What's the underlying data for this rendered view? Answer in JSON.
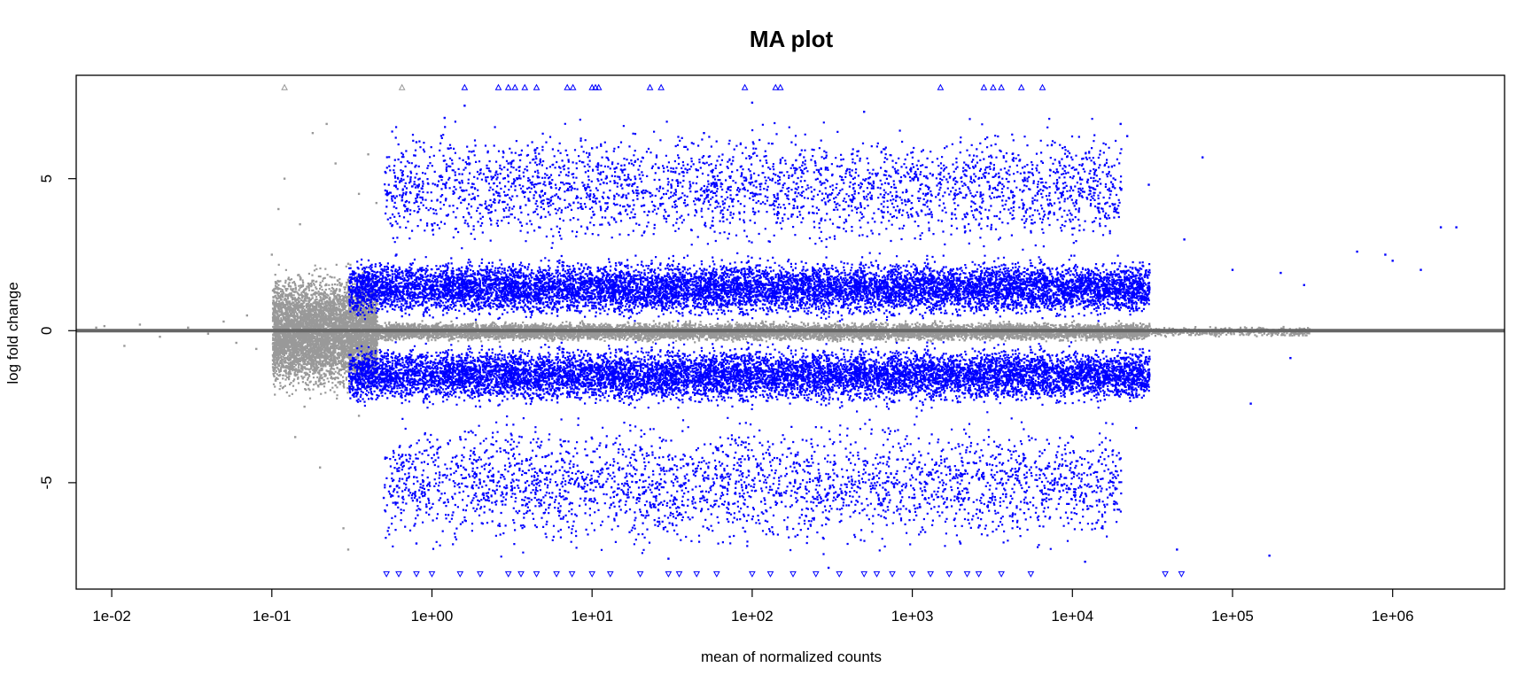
{
  "chart_data": {
    "type": "scatter",
    "title": "MA plot",
    "xlabel": "mean of normalized counts",
    "ylabel": "log fold change",
    "x_scale": "log10",
    "xlim": [
      0.006,
      5000000
    ],
    "ylim": [
      -8.5,
      8.4
    ],
    "x_ticks": [
      {
        "value": 0.01,
        "label": "1e-02"
      },
      {
        "value": 0.1,
        "label": "1e-01"
      },
      {
        "value": 1,
        "label": "1e+00"
      },
      {
        "value": 10,
        "label": "1e+01"
      },
      {
        "value": 100,
        "label": "1e+02"
      },
      {
        "value": 1000,
        "label": "1e+03"
      },
      {
        "value": 10000,
        "label": "1e+04"
      },
      {
        "value": 100000,
        "label": "1e+05"
      },
      {
        "value": 1000000,
        "label": "1e+06"
      }
    ],
    "y_ticks": [
      {
        "value": -5,
        "label": "-5"
      },
      {
        "value": 0,
        "label": "0"
      },
      {
        "value": 5,
        "label": "5"
      }
    ],
    "reference_line": {
      "y": 0,
      "color": "#666666"
    },
    "grid": false,
    "legend": "none",
    "colors": {
      "not_significant": "#999999",
      "significant": "#0000ff"
    },
    "series": [
      {
        "color": "#999999",
        "marker": "point",
        "points": [
          [
            0.008,
            0.1
          ],
          [
            0.009,
            0.15
          ],
          [
            0.012,
            -0.5
          ],
          [
            0.015,
            0.2
          ],
          [
            0.02,
            -0.2
          ],
          [
            0.03,
            0.1
          ],
          [
            0.04,
            -0.1
          ],
          [
            0.05,
            0.3
          ],
          [
            0.06,
            -0.4
          ],
          [
            0.07,
            0.5
          ],
          [
            0.08,
            -0.6
          ],
          [
            0.1,
            2.5
          ],
          [
            0.11,
            4.0
          ],
          [
            0.12,
            5.0
          ],
          [
            0.14,
            -3.5
          ],
          [
            0.15,
            3.5
          ],
          [
            0.18,
            6.5
          ],
          [
            0.2,
            -4.5
          ],
          [
            0.22,
            6.8
          ],
          [
            0.25,
            5.5
          ],
          [
            0.28,
            -6.5
          ],
          [
            0.3,
            -7.2
          ],
          [
            0.35,
            4.5
          ],
          [
            0.4,
            5.8
          ],
          [
            0.45,
            4.2
          ],
          [
            0.2,
            1.5
          ],
          [
            0.25,
            -1.8
          ],
          [
            0.3,
            2.2
          ],
          [
            0.16,
            -2.5
          ],
          [
            0.35,
            -2.8
          ]
        ]
      },
      {
        "color": "#999999",
        "marker": "triangle-up",
        "points": [
          [
            0.12,
            8.0
          ],
          [
            0.65,
            8.0
          ]
        ]
      },
      {
        "color": "#0000ff",
        "marker": "point",
        "points": [
          [
            0.8,
            6.2
          ],
          [
            1.2,
            7.0
          ],
          [
            1.6,
            7.4
          ],
          [
            3,
            5.5
          ],
          [
            5,
            4.0
          ],
          [
            10,
            6.0
          ],
          [
            20,
            5.0
          ],
          [
            50,
            6.5
          ],
          [
            100,
            7.5
          ],
          [
            200,
            5.8
          ],
          [
            500,
            7.2
          ],
          [
            1000,
            5.0
          ],
          [
            2000,
            6.2
          ],
          [
            5000,
            5.2
          ],
          [
            20000,
            6.8
          ],
          [
            22000,
            6.4
          ],
          [
            30000,
            4.8
          ],
          [
            65000,
            5.7
          ],
          [
            2000000,
            3.4
          ],
          [
            2500000,
            3.4
          ],
          [
            600000,
            2.6
          ],
          [
            900000,
            2.5
          ],
          [
            1000000,
            2.3
          ],
          [
            1500000,
            2.0
          ],
          [
            200000,
            1.9
          ],
          [
            280000,
            1.5
          ],
          [
            50000,
            3.0
          ],
          [
            100000,
            2.0
          ],
          [
            0.6,
            2.5
          ],
          [
            1,
            3.5
          ],
          [
            1.5,
            -3.5
          ],
          [
            2,
            -2.5
          ],
          [
            5,
            -6.0
          ],
          [
            10,
            -5.0
          ],
          [
            30,
            -7.5
          ],
          [
            100,
            -6.2
          ],
          [
            300,
            -7.8
          ],
          [
            1000,
            -5.5
          ],
          [
            2000,
            -7.0
          ],
          [
            5000,
            -6.0
          ],
          [
            20000,
            -4.2
          ],
          [
            25000,
            -3.2
          ],
          [
            130000,
            -2.4
          ],
          [
            170000,
            -7.4
          ],
          [
            12000,
            -7.6
          ],
          [
            45000,
            -7.2
          ],
          [
            230000,
            -0.9
          ],
          [
            0.5,
            -5.5
          ],
          [
            0.8,
            -7.0
          ]
        ]
      },
      {
        "color": "#0000ff",
        "marker": "triangle-up",
        "points": [
          [
            1.6,
            8.0
          ],
          [
            2.6,
            8.0
          ],
          [
            3,
            8.0
          ],
          [
            3.3,
            8.0
          ],
          [
            3.8,
            8.0
          ],
          [
            4.5,
            8.0
          ],
          [
            7,
            8.0
          ],
          [
            7.6,
            8.0
          ],
          [
            10,
            8.0
          ],
          [
            10.5,
            8.0
          ],
          [
            11,
            8.0
          ],
          [
            23,
            8.0
          ],
          [
            27,
            8.0
          ],
          [
            90,
            8.0
          ],
          [
            140,
            8.0
          ],
          [
            150,
            8.0
          ],
          [
            1500,
            8.0
          ],
          [
            2800,
            8.0
          ],
          [
            3200,
            8.0
          ],
          [
            3600,
            8.0
          ],
          [
            4800,
            8.0
          ],
          [
            6500,
            8.0
          ]
        ]
      },
      {
        "color": "#0000ff",
        "marker": "triangle-down",
        "points": [
          [
            0.52,
            -8.0
          ],
          [
            0.62,
            -8.0
          ],
          [
            0.8,
            -8.0
          ],
          [
            1,
            -8.0
          ],
          [
            1.5,
            -8.0
          ],
          [
            2,
            -8.0
          ],
          [
            3,
            -8.0
          ],
          [
            3.6,
            -8.0
          ],
          [
            4.5,
            -8.0
          ],
          [
            6,
            -8.0
          ],
          [
            7.5,
            -8.0
          ],
          [
            10,
            -8.0
          ],
          [
            13,
            -8.0
          ],
          [
            20,
            -8.0
          ],
          [
            30,
            -8.0
          ],
          [
            35,
            -8.0
          ],
          [
            45,
            -8.0
          ],
          [
            60,
            -8.0
          ],
          [
            100,
            -8.0
          ],
          [
            130,
            -8.0
          ],
          [
            180,
            -8.0
          ],
          [
            250,
            -8.0
          ],
          [
            350,
            -8.0
          ],
          [
            500,
            -8.0
          ],
          [
            600,
            -8.0
          ],
          [
            750,
            -8.0
          ],
          [
            1000,
            -8.0
          ],
          [
            1300,
            -8.0
          ],
          [
            1700,
            -8.0
          ],
          [
            2200,
            -8.0
          ],
          [
            2600,
            -8.0
          ],
          [
            3600,
            -8.0
          ],
          [
            5500,
            -8.0
          ],
          [
            38000,
            -8.0
          ],
          [
            48000,
            -8.0
          ]
        ]
      }
    ],
    "density_bands": [
      {
        "color": "#999999",
        "x_from": 0.1,
        "x_to": 0.45,
        "y_from": -2.2,
        "y_to": 2.2,
        "count": 6000
      },
      {
        "color": "#999999",
        "x_from": 0.45,
        "x_to": 30000,
        "y_from": -0.35,
        "y_to": 0.35,
        "count": 9000
      },
      {
        "color": "#999999",
        "x_from": 30000,
        "x_to": 300000,
        "y_from": -0.2,
        "y_to": 0.2,
        "count": 400
      },
      {
        "color": "#0000ff",
        "x_from": 0.3,
        "x_to": 30000,
        "y_from": 0.35,
        "y_to": 2.5,
        "count": 11000
      },
      {
        "color": "#0000ff",
        "x_from": 0.3,
        "x_to": 30000,
        "y_from": -2.5,
        "y_to": -0.35,
        "count": 11000
      },
      {
        "color": "#0000ff",
        "x_from": 0.5,
        "x_to": 20000,
        "y_from": 2.5,
        "y_to": 7.0,
        "count": 3000
      },
      {
        "color": "#0000ff",
        "x_from": 0.5,
        "x_to": 20000,
        "y_from": -7.5,
        "y_to": -2.5,
        "count": 3000
      }
    ]
  }
}
